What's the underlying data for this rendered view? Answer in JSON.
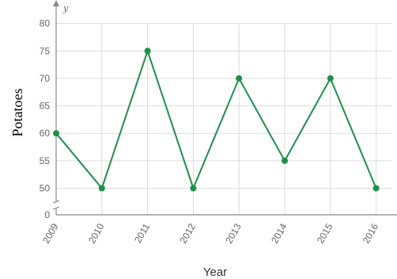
{
  "chart_data": {
    "type": "line",
    "x": [
      "2009",
      "2010",
      "2011",
      "2012",
      "2013",
      "2014",
      "2015",
      "2016"
    ],
    "series": [
      {
        "values": [
          60,
          50,
          75,
          50,
          70,
          55,
          70,
          50
        ]
      }
    ],
    "xlabel": "Year",
    "ylabel": "Potatoes",
    "y_axis_symbol": "y",
    "y_ticks": [
      0,
      50,
      55,
      60,
      65,
      70,
      75,
      80
    ],
    "ylim": [
      45,
      80
    ],
    "y_axis_break": true,
    "grid": true,
    "line_color": "#1e8f4a",
    "grid_color": "#dddddd",
    "axis_color": "#888888"
  }
}
